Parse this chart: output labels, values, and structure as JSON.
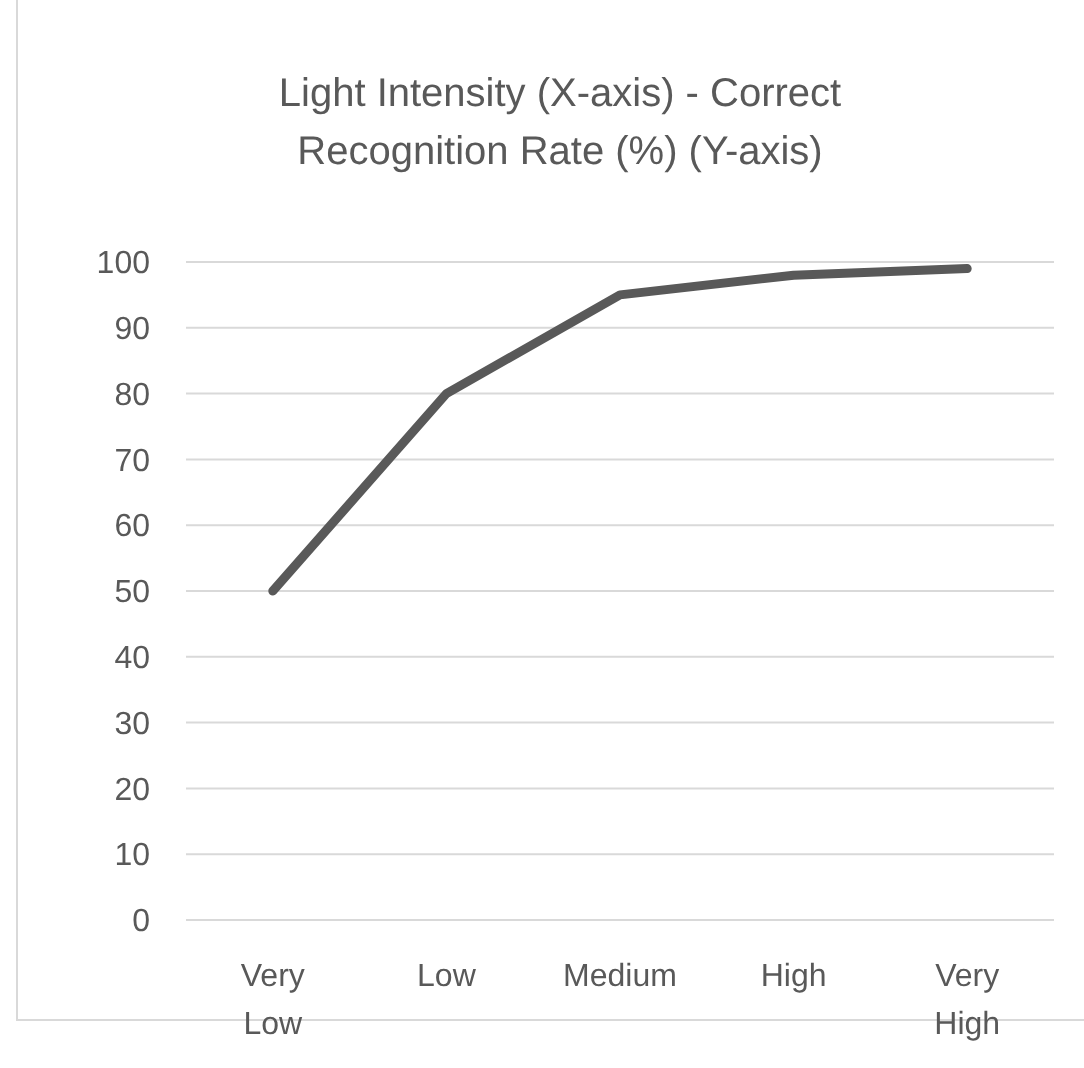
{
  "chart_data": {
    "type": "line",
    "title": "Light Intensity (X-axis) - Correct Recognition Rate (%) (Y-axis)",
    "categories": [
      "Very Low",
      "Low",
      "Medium",
      "High",
      "Very High"
    ],
    "series": [
      {
        "color": "#595959",
        "values": [
          50,
          80,
          95,
          98,
          99
        ]
      }
    ],
    "ylim": [
      0,
      100
    ],
    "yticks": [
      0,
      10,
      20,
      30,
      40,
      50,
      60,
      70,
      80,
      90,
      100
    ],
    "grid": "y",
    "marker": "none",
    "line_style": "solid"
  }
}
